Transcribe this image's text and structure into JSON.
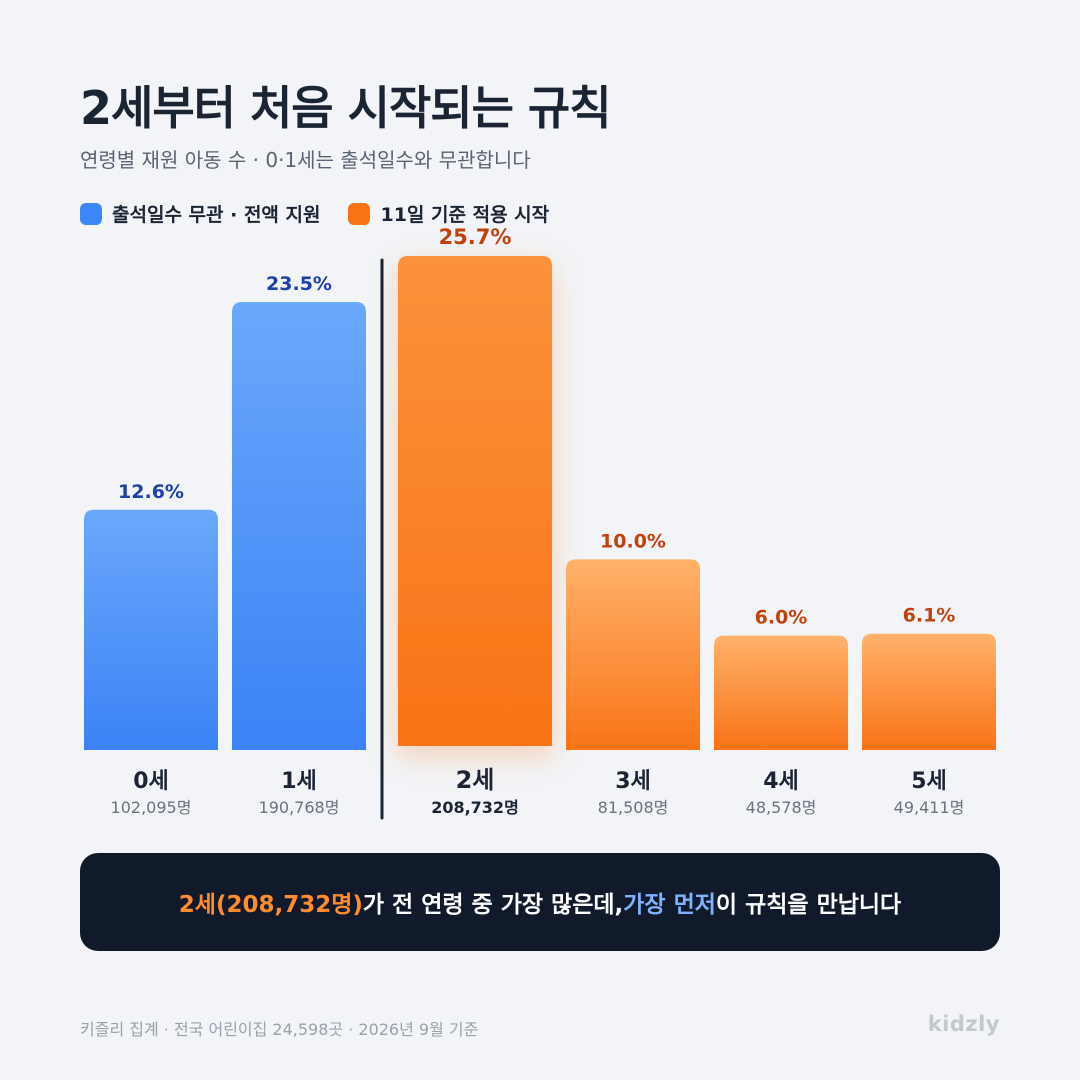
{
  "header": {
    "title": "2세부터 처음 시작되는 규칙",
    "subtitle": "연령별 재원 아동 수 · 0·1세는 출석일수와 무관합니다"
  },
  "legend": [
    {
      "label": "출석일수 무관 · 전액 지원",
      "color": "#3d86f7"
    },
    {
      "label": "11일 기준 적용 시작",
      "color": "#f97316"
    }
  ],
  "chart_data": {
    "type": "bar",
    "categories": [
      "0세",
      "1세",
      "2세",
      "3세",
      "4세",
      "5세"
    ],
    "values": [
      12.6,
      23.5,
      25.7,
      10.0,
      6.0,
      6.1
    ],
    "value_labels": [
      "12.6%",
      "23.5%",
      "25.7%",
      "10.0%",
      "6.0%",
      "6.1%"
    ],
    "counts": [
      "102,095명",
      "190,768명",
      "208,732명",
      "81,508명",
      "48,578명",
      "49,411명"
    ],
    "groups": [
      "blue",
      "blue",
      "orange",
      "orange",
      "orange",
      "orange"
    ],
    "highlight_index": 2,
    "ylim": [
      0,
      26
    ],
    "grid": false,
    "legend_position": "top-left",
    "colors": {
      "blue_top": "#6aa8fb",
      "blue_bottom": "#3b82f6",
      "orange_top": "#ffb26b",
      "orange_bottom": "#f97316",
      "highlight_top": "#fb923c",
      "highlight_bottom": "#f97316",
      "blue_label": "#1e40af",
      "orange_label": "#c2410c",
      "divider": "#1b2433"
    }
  },
  "callout": {
    "part1": "2세(208,732명)",
    "part2": "가 전 연령 중 가장 많은데, ",
    "part3": "가장 먼저",
    "part4": " 이 규칙을 만납니다"
  },
  "footer": {
    "source": "키즐리 집계 · 전국 어린이집 24,598곳 · 2026년 9월 기준",
    "brand": "kidzly"
  }
}
